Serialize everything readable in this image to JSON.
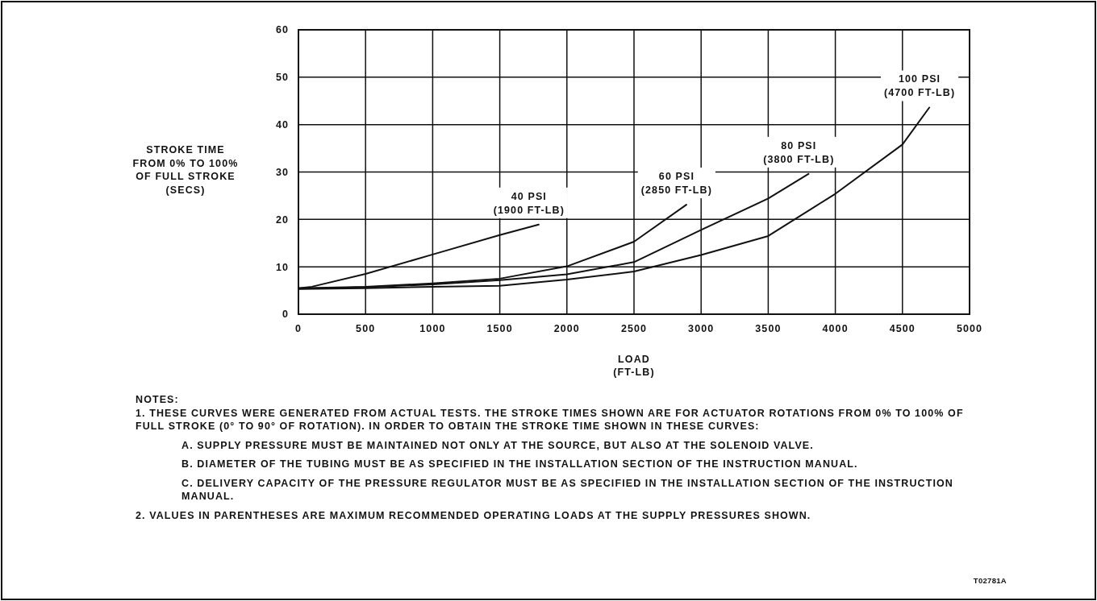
{
  "chart_data": {
    "type": "line",
    "xlabel": "LOAD\n(FT-LB)",
    "ylabel": "STROKE TIME\nFROM 0% TO 100%\nOF FULL STROKE\n(SECS)",
    "xlim": [
      0,
      5000
    ],
    "xticks": [
      0,
      500,
      1000,
      1500,
      2000,
      2500,
      3000,
      3500,
      4000,
      4500,
      5000
    ],
    "ylim": [
      0,
      60
    ],
    "yticks": [
      0,
      10,
      20,
      30,
      40,
      50,
      60
    ],
    "grid": true,
    "marker": "none",
    "line_style": "solid",
    "series": [
      {
        "name": "40 PSI\n(1900 FT-LB)",
        "color": "#111111",
        "x": [
          0,
          100,
          500,
          1000,
          1500,
          1790
        ],
        "values": [
          5.5,
          5.8,
          8.5,
          12.6,
          16.7,
          18.9
        ]
      },
      {
        "name": "60 PSI\n(2850 FT-LB)",
        "color": "#111111",
        "x": [
          0,
          500,
          1000,
          1500,
          2000,
          2500,
          2890
        ],
        "values": [
          5.5,
          5.8,
          6.5,
          7.5,
          10.1,
          15.3,
          23.1
        ]
      },
      {
        "name": "80 PSI\n(3800 FT-LB)",
        "color": "#111111",
        "x": [
          0,
          500,
          1000,
          1500,
          2000,
          2500,
          3000,
          3500,
          3800
        ],
        "values": [
          5.4,
          5.7,
          6.3,
          7.2,
          8.4,
          11.0,
          17.8,
          24.4,
          29.6
        ]
      },
      {
        "name": "100 PSI\n(4700 FT-LB)",
        "color": "#111111",
        "x": [
          0,
          500,
          1000,
          1500,
          2000,
          2500,
          3000,
          3500,
          4000,
          4500,
          4700
        ],
        "values": [
          5.3,
          5.5,
          5.8,
          6.0,
          7.3,
          9.0,
          12.5,
          16.5,
          25.4,
          35.8,
          43.6
        ]
      }
    ],
    "annotations": [
      "NOTES:",
      "1. THESE CURVES WERE GENERATED FROM ACTUAL TESTS. THE STROKE TIMES SHOWN ARE FOR ACTUATOR ROTATIONS FROM 0% TO 100% OF FULL STROKE (0° TO 90° OF ROTATION). IN ORDER TO OBTAIN THE STROKE TIME SHOWN IN THESE CURVES:",
      "A. SUPPLY PRESSURE MUST BE MAINTAINED NOT ONLY AT THE SOURCE, BUT ALSO AT THE SOLENOID VALVE.",
      "B. DIAMETER OF THE TUBING MUST BE AS SPECIFIED IN THE INSTALLATION SECTION OF THE INSTRUCTION MANUAL.",
      "C. DELIVERY CAPACITY OF THE PRESSURE REGULATOR MUST BE AS SPECIFIED IN THE INSTALLATION SECTION OF THE INSTRUCTION MANUAL.",
      "2. VALUES IN PARENTHESES ARE MAXIMUM RECOMMENDED OPERATING LOADS AT THE SUPPLY PRESSURES SHOWN.",
      "T02781A"
    ]
  }
}
